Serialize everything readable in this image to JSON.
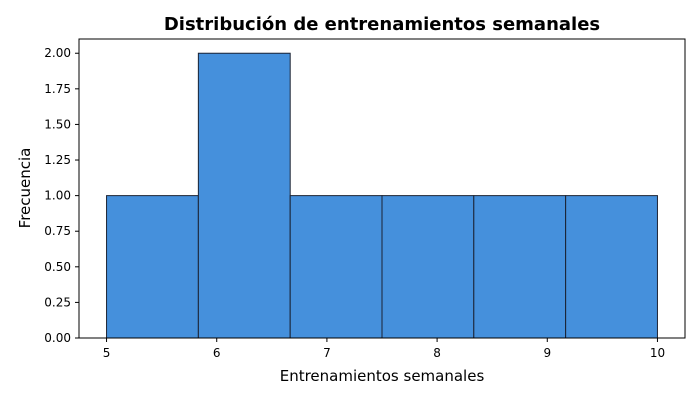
{
  "chart_data": {
    "type": "bar",
    "title": "Distribución de entrenamientos semanales",
    "xlabel": "Entrenamientos semanales",
    "ylabel": "Frecuencia",
    "bin_edges": [
      5.0,
      5.8333,
      6.6667,
      7.5,
      8.3333,
      9.1667,
      10.0
    ],
    "values": [
      1,
      2,
      1,
      1,
      1,
      1
    ],
    "xlim": [
      4.75,
      10.25
    ],
    "ylim": [
      0,
      2.1
    ],
    "xticks": [
      5,
      6,
      7,
      8,
      9,
      10
    ],
    "xtick_labels": [
      "5",
      "6",
      "7",
      "8",
      "9",
      "10"
    ],
    "yticks": [
      0,
      0.25,
      0.5,
      0.75,
      1.0,
      1.25,
      1.5,
      1.75,
      2.0
    ],
    "ytick_labels": [
      "0.00",
      "0.25",
      "0.50",
      "0.75",
      "1.00",
      "1.25",
      "1.50",
      "1.75",
      "2.00"
    ],
    "grid": false,
    "bar_color": "#4590dc",
    "edge_color": "#1a2233"
  }
}
